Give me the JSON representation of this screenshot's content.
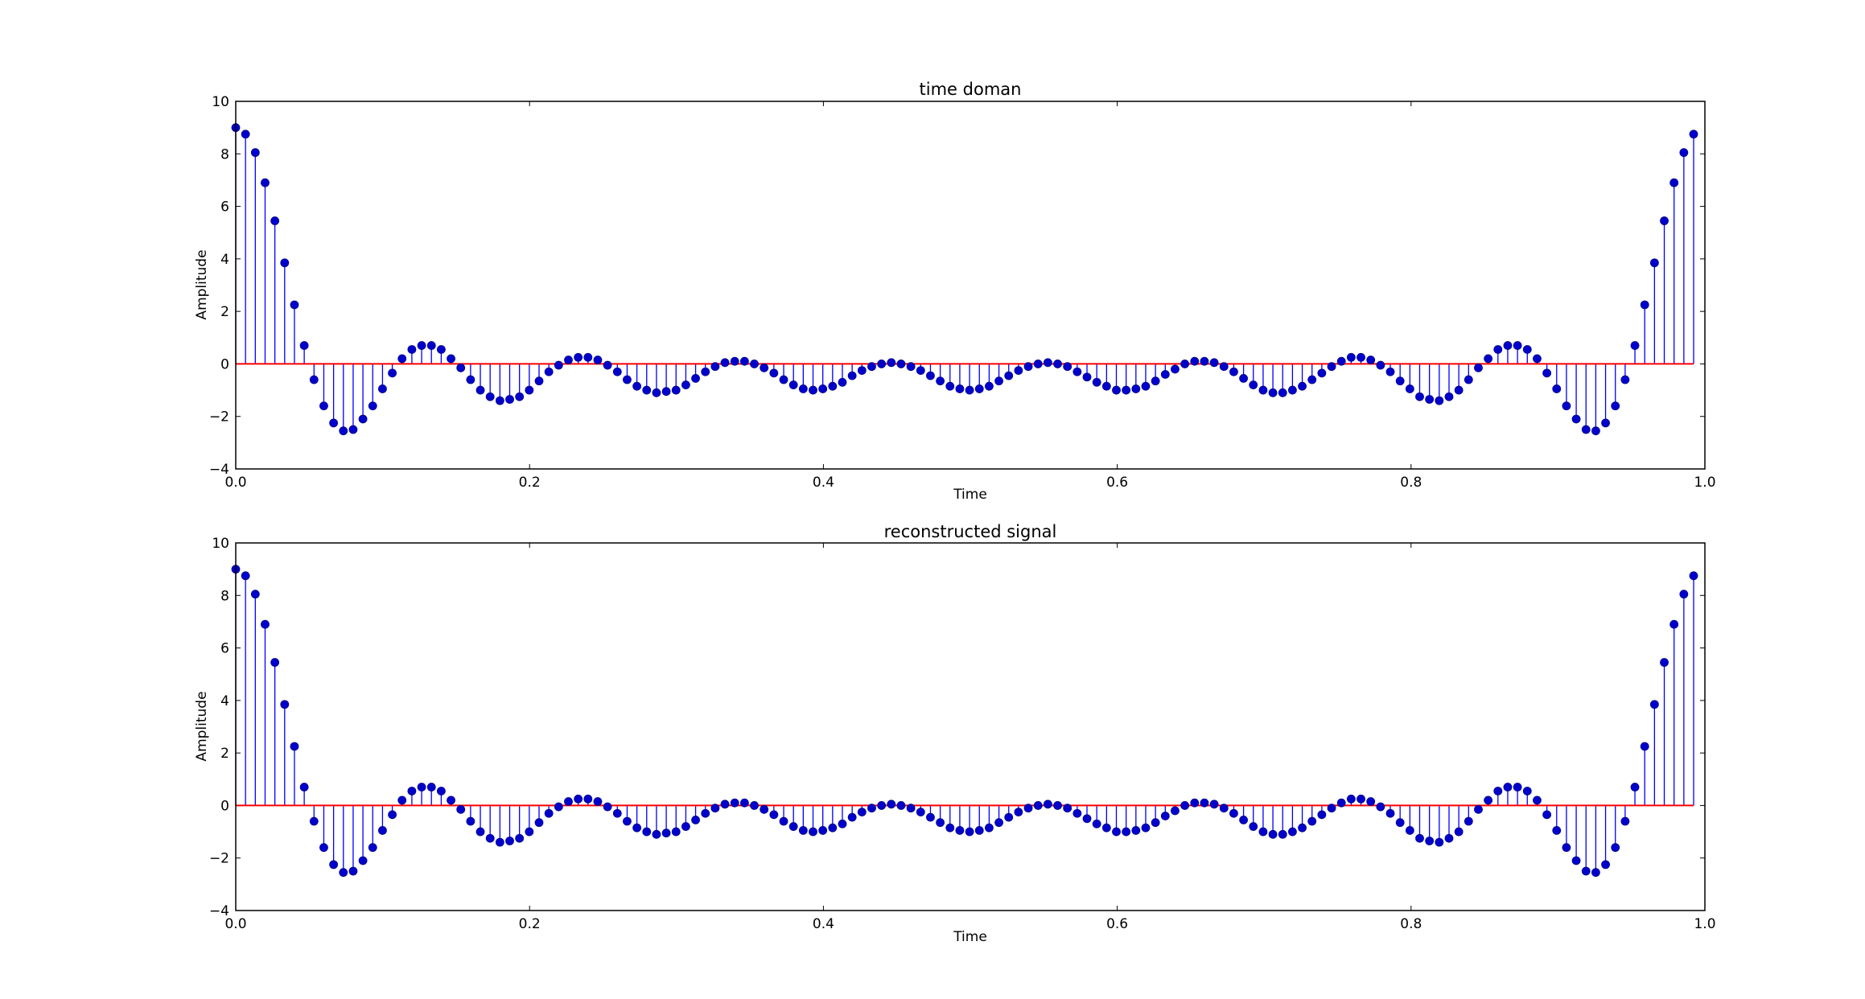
{
  "chart_data": [
    {
      "type": "stem",
      "title": "time doman",
      "xlabel": "Time",
      "ylabel": "Amplitude",
      "xlim": [
        0.0,
        1.0
      ],
      "ylim": [
        -4,
        10
      ],
      "xticks": [
        "0.0",
        "0.2",
        "0.4",
        "0.6",
        "0.8",
        "1.0"
      ],
      "yticks": [
        "−4",
        "−2",
        "0",
        "2",
        "4",
        "6",
        "8",
        "10"
      ],
      "stem_color": "#0000ff",
      "baseline_color": "#ff0000",
      "marker_color": "#0000cc",
      "x_start": 0.0,
      "x_step": 0.00666,
      "values": [
        9.0,
        8.75,
        8.05,
        6.9,
        5.45,
        3.85,
        2.25,
        0.7,
        -0.6,
        -1.6,
        -2.25,
        -2.55,
        -2.5,
        -2.1,
        -1.6,
        -0.95,
        -0.35,
        0.2,
        0.55,
        0.7,
        0.7,
        0.55,
        0.2,
        -0.15,
        -0.6,
        -1.0,
        -1.25,
        -1.4,
        -1.35,
        -1.25,
        -1.0,
        -0.65,
        -0.3,
        -0.05,
        0.15,
        0.25,
        0.25,
        0.15,
        -0.05,
        -0.3,
        -0.6,
        -0.85,
        -1.0,
        -1.1,
        -1.05,
        -1.0,
        -0.8,
        -0.55,
        -0.3,
        -0.1,
        0.05,
        0.1,
        0.1,
        0.0,
        -0.15,
        -0.35,
        -0.6,
        -0.8,
        -0.95,
        -1.0,
        -0.95,
        -0.85,
        -0.7,
        -0.45,
        -0.25,
        -0.1,
        0.0,
        0.05,
        0.0,
        -0.1,
        -0.25,
        -0.45,
        -0.65,
        -0.85,
        -0.95,
        -1.0,
        -0.95,
        -0.85,
        -0.65,
        -0.45,
        -0.25,
        -0.1,
        0.0,
        0.05,
        0.0,
        -0.1,
        -0.3,
        -0.5,
        -0.7,
        -0.85,
        -1.0,
        -1.0,
        -0.95,
        -0.85,
        -0.65,
        -0.4,
        -0.2,
        0.0,
        0.1,
        0.1,
        0.05,
        -0.1,
        -0.3,
        -0.55,
        -0.8,
        -1.0,
        -1.1,
        -1.1,
        -1.0,
        -0.85,
        -0.6,
        -0.35,
        -0.1,
        0.1,
        0.25,
        0.25,
        0.15,
        -0.05,
        -0.3,
        -0.65,
        -0.95,
        -1.25,
        -1.35,
        -1.4,
        -1.25,
        -1.0,
        -0.6,
        -0.15,
        0.2,
        0.55,
        0.7,
        0.7,
        0.55,
        0.2,
        -0.35,
        -0.95,
        -1.6,
        -2.1,
        -2.5,
        -2.55,
        -2.25,
        -1.6,
        -0.6,
        0.7,
        2.25,
        3.85,
        5.45,
        6.9,
        8.05,
        8.75
      ]
    },
    {
      "type": "stem",
      "title": "reconstructed signal",
      "xlabel": "Time",
      "ylabel": "Amplitude",
      "xlim": [
        0.0,
        1.0
      ],
      "ylim": [
        -4,
        10
      ],
      "xticks": [
        "0.0",
        "0.2",
        "0.4",
        "0.6",
        "0.8",
        "1.0"
      ],
      "yticks": [
        "−4",
        "−2",
        "0",
        "2",
        "4",
        "6",
        "8",
        "10"
      ],
      "stem_color": "#0000ff",
      "baseline_color": "#ff0000",
      "marker_color": "#0000cc",
      "x_start": 0.0,
      "x_step": 0.00666,
      "values": [
        9.0,
        8.75,
        8.05,
        6.9,
        5.45,
        3.85,
        2.25,
        0.7,
        -0.6,
        -1.6,
        -2.25,
        -2.55,
        -2.5,
        -2.1,
        -1.6,
        -0.95,
        -0.35,
        0.2,
        0.55,
        0.7,
        0.7,
        0.55,
        0.2,
        -0.15,
        -0.6,
        -1.0,
        -1.25,
        -1.4,
        -1.35,
        -1.25,
        -1.0,
        -0.65,
        -0.3,
        -0.05,
        0.15,
        0.25,
        0.25,
        0.15,
        -0.05,
        -0.3,
        -0.6,
        -0.85,
        -1.0,
        -1.1,
        -1.05,
        -1.0,
        -0.8,
        -0.55,
        -0.3,
        -0.1,
        0.05,
        0.1,
        0.1,
        0.0,
        -0.15,
        -0.35,
        -0.6,
        -0.8,
        -0.95,
        -1.0,
        -0.95,
        -0.85,
        -0.7,
        -0.45,
        -0.25,
        -0.1,
        0.0,
        0.05,
        0.0,
        -0.1,
        -0.25,
        -0.45,
        -0.65,
        -0.85,
        -0.95,
        -1.0,
        -0.95,
        -0.85,
        -0.65,
        -0.45,
        -0.25,
        -0.1,
        0.0,
        0.05,
        0.0,
        -0.1,
        -0.3,
        -0.5,
        -0.7,
        -0.85,
        -1.0,
        -1.0,
        -0.95,
        -0.85,
        -0.65,
        -0.4,
        -0.2,
        0.0,
        0.1,
        0.1,
        0.05,
        -0.1,
        -0.3,
        -0.55,
        -0.8,
        -1.0,
        -1.1,
        -1.1,
        -1.0,
        -0.85,
        -0.6,
        -0.35,
        -0.1,
        0.1,
        0.25,
        0.25,
        0.15,
        -0.05,
        -0.3,
        -0.65,
        -0.95,
        -1.25,
        -1.35,
        -1.4,
        -1.25,
        -1.0,
        -0.6,
        -0.15,
        0.2,
        0.55,
        0.7,
        0.7,
        0.55,
        0.2,
        -0.35,
        -0.95,
        -1.6,
        -2.1,
        -2.5,
        -2.55,
        -2.25,
        -1.6,
        -0.6,
        0.7,
        2.25,
        3.85,
        5.45,
        6.9,
        8.05,
        8.75
      ]
    }
  ]
}
